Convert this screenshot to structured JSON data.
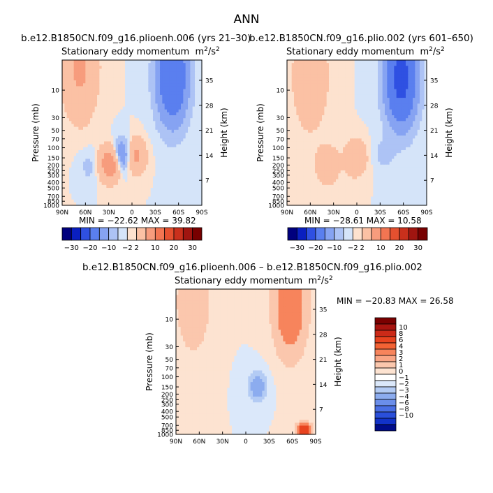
{
  "page_title": "ANN",
  "panels": [
    {
      "case": "b.e12.B1850CN.f09_g16.plioenh.006 (yrs 21–30)",
      "subtitle": "Stationary eddy momentum",
      "units_base": "m",
      "units_sup": "2",
      "units_div": "/s",
      "units_sup2": "2",
      "min_max": "MIN = −22.62   MAX =  39.82",
      "min": -22.62,
      "max": 39.82
    },
    {
      "case": "b.e12.B1850CN.f09_g16.plio.002 (yrs 601–650)",
      "subtitle": "Stationary eddy momentum",
      "units_base": "m",
      "units_sup": "2",
      "units_div": "/s",
      "units_sup2": "2",
      "min_max": "MIN = −28.61   MAX =  10.58",
      "min": -28.61,
      "max": 10.58
    },
    {
      "case": "b.e12.B1850CN.f09_g16.plioenh.006 – b.e12.B1850CN.f09_g16.plio.002",
      "subtitle": "Stationary eddy momentum",
      "units_base": "m",
      "units_sup": "2",
      "units_div": "/s",
      "units_sup2": "2",
      "min_max": "MIN = −20.83   MAX =  26.58",
      "min": -20.83,
      "max": 26.58
    }
  ],
  "chart_data": [
    {
      "type": "heatmap",
      "panel": "top-left",
      "x_label": "",
      "y_label": "Pressure (mb)",
      "y2_label": "Height (km)",
      "x_ticks": [
        "90N",
        "60N",
        "30N",
        "0",
        "30S",
        "60S",
        "90S"
      ],
      "x_tick_values": [
        90,
        60,
        30,
        0,
        -30,
        -60,
        -90
      ],
      "y_ticks": [
        "10",
        "30",
        "50",
        "70",
        "100",
        "150",
        "200",
        "250",
        "300",
        "400",
        "500",
        "700",
        "850",
        "1000"
      ],
      "y_tick_values": [
        10,
        30,
        50,
        70,
        100,
        150,
        200,
        250,
        300,
        400,
        500,
        700,
        850,
        1000
      ],
      "y2_ticks": [
        "35",
        "28",
        "21",
        "14",
        "7"
      ],
      "y2_tick_values": [
        35,
        28,
        21,
        14,
        7
      ],
      "xlim": [
        90,
        -90
      ],
      "ylim_mb": [
        1000,
        3
      ],
      "y_scale": "log",
      "contour_levels": [
        -30,
        -20,
        -10,
        -2,
        2,
        10,
        20,
        30
      ],
      "colorbar_labels": [
        "−30",
        "−20",
        "−10",
        "−2",
        "2",
        "10",
        "20",
        "30"
      ],
      "colorbar_colors": [
        "#00007e",
        "#0a1fc0",
        "#2f50e2",
        "#5a7fef",
        "#86a3f2",
        "#adc3f5",
        "#d5e4f9",
        "#fde2cf",
        "#fbc1a4",
        "#f79c7d",
        "#f27552",
        "#e5502f",
        "#c9301c",
        "#a01510",
        "#780000"
      ],
      "colorbar_position": "bottom",
      "features": [
        {
          "lat": 67,
          "p_mb": 4,
          "value": 12,
          "sign": "positive"
        },
        {
          "lat": -52,
          "p_mb": 6,
          "value": -20,
          "sign": "negative"
        },
        {
          "lat": 28,
          "p_mb": 190,
          "value": 20,
          "sign": "positive"
        },
        {
          "lat": 12,
          "p_mb": 140,
          "value": -15,
          "sign": "negative"
        },
        {
          "lat": -3,
          "p_mb": 140,
          "value": 14,
          "sign": "positive"
        },
        {
          "lat": 55,
          "p_mb": 210,
          "value": -3,
          "sign": "negative"
        }
      ]
    },
    {
      "type": "heatmap",
      "panel": "top-right",
      "x_label": "",
      "y_label": "Pressure (mb)",
      "y2_label": "Height (km)",
      "x_ticks": [
        "90N",
        "60N",
        "30N",
        "0",
        "30S",
        "60S",
        "90S"
      ],
      "x_tick_values": [
        90,
        60,
        30,
        0,
        -30,
        -60,
        -90
      ],
      "y_ticks": [
        "10",
        "30",
        "50",
        "70",
        "100",
        "150",
        "200",
        "250",
        "300",
        "400",
        "500",
        "700",
        "850",
        "1000"
      ],
      "y_tick_values": [
        10,
        30,
        50,
        70,
        100,
        150,
        200,
        250,
        300,
        400,
        500,
        700,
        850,
        1000
      ],
      "y2_ticks": [
        "35",
        "28",
        "21",
        "14",
        "7"
      ],
      "y2_tick_values": [
        35,
        28,
        21,
        14,
        7
      ],
      "xlim": [
        90,
        -90
      ],
      "ylim_mb": [
        1000,
        3
      ],
      "y_scale": "log",
      "contour_levels": [
        -30,
        -20,
        -10,
        -2,
        2,
        10,
        20,
        30
      ],
      "colorbar_labels": [
        "−30",
        "−20",
        "−10",
        "−2",
        "2",
        "10",
        "20",
        "30"
      ],
      "colorbar_colors": [
        "#00007e",
        "#0a1fc0",
        "#2f50e2",
        "#5a7fef",
        "#86a3f2",
        "#adc3f5",
        "#d5e4f9",
        "#fde2cf",
        "#fbc1a4",
        "#f79c7d",
        "#f27552",
        "#e5502f",
        "#c9301c",
        "#a01510",
        "#780000"
      ],
      "colorbar_position": "bottom",
      "features": [
        {
          "lat": 60,
          "p_mb": 6,
          "value": 8,
          "sign": "positive"
        },
        {
          "lat": -57,
          "p_mb": 6,
          "value": -25,
          "sign": "negative"
        },
        {
          "lat": 38,
          "p_mb": 200,
          "value": 10,
          "sign": "positive"
        },
        {
          "lat": 2,
          "p_mb": 150,
          "value": 10,
          "sign": "positive"
        },
        {
          "lat": -35,
          "p_mb": 130,
          "value": -3,
          "sign": "negative"
        }
      ]
    },
    {
      "type": "heatmap",
      "panel": "bottom-difference",
      "x_label": "",
      "y_label": "Pressure (mb)",
      "y2_label": "Height (km)",
      "x_ticks": [
        "90N",
        "60N",
        "30N",
        "0",
        "30S",
        "60S",
        "90S"
      ],
      "x_tick_values": [
        90,
        60,
        30,
        0,
        -30,
        -60,
        -90
      ],
      "y_ticks": [
        "10",
        "30",
        "50",
        "70",
        "100",
        "150",
        "200",
        "250",
        "300",
        "400",
        "500",
        "700",
        "850",
        "1000"
      ],
      "y_tick_values": [
        10,
        30,
        50,
        70,
        100,
        150,
        200,
        250,
        300,
        400,
        500,
        700,
        850,
        1000
      ],
      "y2_ticks": [
        "35",
        "28",
        "21",
        "14",
        "7"
      ],
      "y2_tick_values": [
        35,
        28,
        21,
        14,
        7
      ],
      "xlim": [
        90,
        -90
      ],
      "ylim_mb": [
        1000,
        3
      ],
      "y_scale": "log",
      "contour_levels": [
        -10,
        -8,
        -6,
        -4,
        -3,
        -2,
        -1,
        0,
        1,
        2,
        3,
        4,
        6,
        8,
        10
      ],
      "colorbar_labels": [
        "10",
        "8",
        "6",
        "4",
        "3",
        "2",
        "1",
        "0",
        "−1",
        "−2",
        "−3",
        "−4",
        "−6",
        "−8",
        "−10"
      ],
      "colorbar_colors": [
        "#7a0000",
        "#a8140f",
        "#cc2a18",
        "#e8431f",
        "#f36234",
        "#f7845c",
        "#f9a585",
        "#fbc7ad",
        "#fde3d1",
        "#ffffff",
        "#dbe8fa",
        "#b3cbf4",
        "#8cacef",
        "#6b8eea",
        "#4a6fe4",
        "#2a4fda",
        "#1232c8",
        "#000c8a"
      ],
      "colorbar_position": "right",
      "features": [
        {
          "lat": 68,
          "p_mb": 5,
          "value": 3,
          "sign": "positive"
        },
        {
          "lat": -57,
          "p_mb": 6,
          "value": 6,
          "sign": "positive"
        },
        {
          "lat": -15,
          "p_mb": 150,
          "value": -3,
          "sign": "negative"
        },
        {
          "lat": -75,
          "p_mb": 850,
          "value": 10,
          "sign": "positive"
        }
      ]
    }
  ]
}
